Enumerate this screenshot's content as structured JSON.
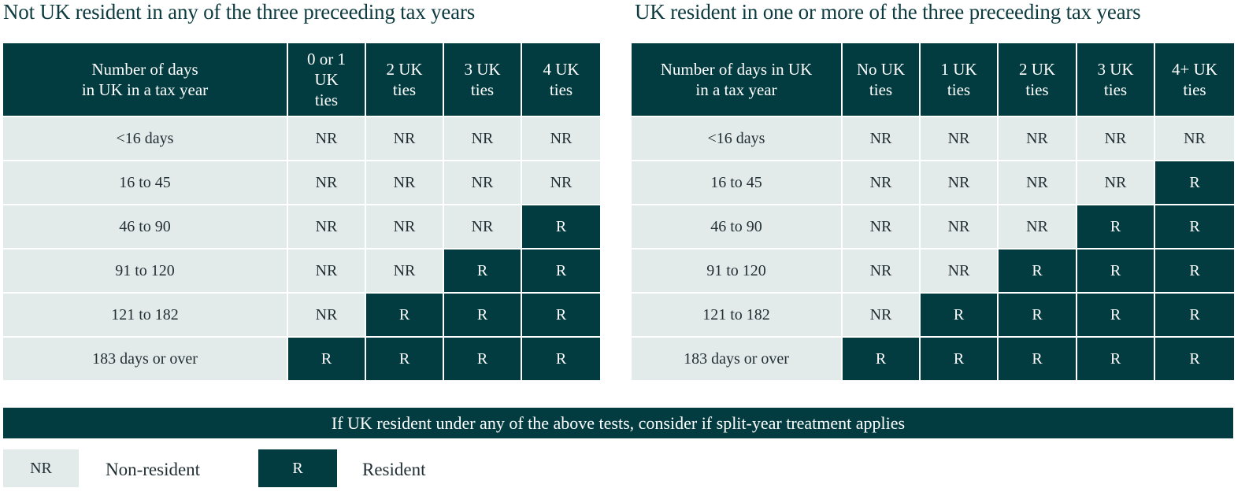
{
  "left_table": {
    "title": "Not UK resident in any of the three preceeding tax years",
    "headers": [
      "Number of days in UK in a tax year",
      "0 or 1 UK ties",
      "2 UK ties",
      "3 UK ties",
      "4 UK ties"
    ],
    "rows": [
      {
        "days": "<16 days",
        "cells": [
          "NR",
          "NR",
          "NR",
          "NR"
        ]
      },
      {
        "days": "16 to 45",
        "cells": [
          "NR",
          "NR",
          "NR",
          "NR"
        ]
      },
      {
        "days": "46 to 90",
        "cells": [
          "NR",
          "NR",
          "NR",
          "R"
        ]
      },
      {
        "days": "91 to 120",
        "cells": [
          "NR",
          "NR",
          "R",
          "R"
        ]
      },
      {
        "days": "121 to 182",
        "cells": [
          "NR",
          "R",
          "R",
          "R"
        ]
      },
      {
        "days": "183 days or over",
        "cells": [
          "R",
          "R",
          "R",
          "R"
        ]
      }
    ]
  },
  "right_table": {
    "title": "UK resident in one or more of the three preceeding tax years",
    "headers": [
      "Number of days in UK in a tax year",
      "No UK ties",
      "1 UK ties",
      "2 UK ties",
      "3 UK ties",
      "4+ UK ties"
    ],
    "rows": [
      {
        "days": "<16 days",
        "cells": [
          "NR",
          "NR",
          "NR",
          "NR",
          "NR"
        ]
      },
      {
        "days": "16 to 45",
        "cells": [
          "NR",
          "NR",
          "NR",
          "NR",
          "R"
        ]
      },
      {
        "days": "46 to 90",
        "cells": [
          "NR",
          "NR",
          "NR",
          "R",
          "R"
        ]
      },
      {
        "days": "91 to 120",
        "cells": [
          "NR",
          "NR",
          "R",
          "R",
          "R"
        ]
      },
      {
        "days": "121 to 182",
        "cells": [
          "NR",
          "R",
          "R",
          "R",
          "R"
        ]
      },
      {
        "days": "183 days or over",
        "cells": [
          "R",
          "R",
          "R",
          "R",
          "R"
        ]
      }
    ]
  },
  "banner": {
    "text": "If UK resident under any of the above tests, consider if split-year treatment applies"
  },
  "legend": {
    "non_resident": {
      "code": "NR",
      "label": "Non-resident"
    },
    "resident": {
      "code": "R",
      "label": "Resident"
    }
  },
  "colors": {
    "dark_teal": "#023c40",
    "light_grey": "#e3eaea",
    "title_text": "#0e3b3f"
  }
}
